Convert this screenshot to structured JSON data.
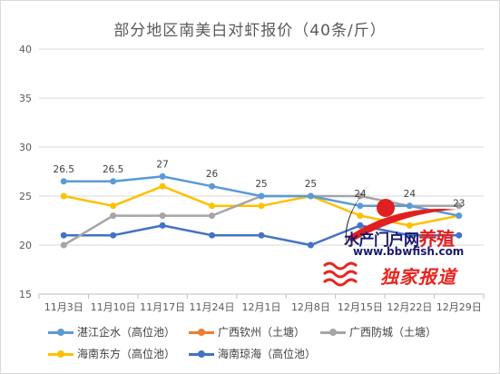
{
  "chart_data": {
    "type": "line",
    "title": "部分地区南美白对虾报价（40条/斤）",
    "xlabel": "",
    "ylabel": "",
    "ylim": [
      15,
      40
    ],
    "yticks": [
      "15",
      "20",
      "25",
      "30",
      "35",
      "40"
    ],
    "categories": [
      "11月3日",
      "11月10日",
      "11月17日",
      "11月24日",
      "12月1日",
      "12月8日",
      "12月15日",
      "12月22日",
      "12月29日"
    ],
    "grid": true,
    "legend_position": "bottom",
    "series": [
      {
        "name": "湛江企水（高位池）",
        "color": "#5b9bd5",
        "values": [
          26.5,
          26.5,
          27,
          26,
          25,
          25,
          24,
          24,
          23
        ],
        "labels": [
          "26.5",
          "26.5",
          "27",
          "26",
          "25",
          "25",
          "24",
          "24",
          "23"
        ]
      },
      {
        "name": "广西钦州（土塘）",
        "color": "#ed7d31",
        "values": [
          null,
          null,
          null,
          null,
          null,
          null,
          null,
          null,
          null
        ],
        "labels": []
      },
      {
        "name": "广西防城（土塘）",
        "color": "#a5a5a5",
        "values": [
          20,
          23,
          23,
          23,
          25,
          25,
          25,
          24,
          24
        ],
        "labels": []
      },
      {
        "name": "海南东方（高位池）",
        "color": "#ffc000",
        "values": [
          25,
          24,
          26,
          24,
          24,
          25,
          23,
          22,
          23
        ],
        "labels": []
      },
      {
        "name": "海南琼海（高位池）",
        "color": "#4472c4",
        "values": [
          21,
          21,
          22,
          21,
          21,
          20,
          22,
          21,
          21
        ],
        "labels": []
      }
    ]
  },
  "watermark": {
    "line1_a": "水产门户网",
    "line1_b": "养殖",
    "line2": "www.bbwfish.com",
    "line3": "独家报道"
  }
}
